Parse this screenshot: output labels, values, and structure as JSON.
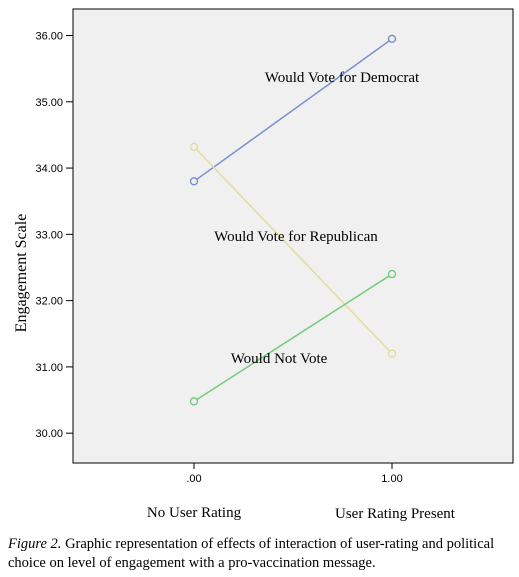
{
  "chart_data": {
    "type": "line",
    "ylabel": "Engagement Scale",
    "x": [
      0,
      1
    ],
    "x_tick_labels": [
      ".00",
      "1.00"
    ],
    "x_category_labels": [
      "No User Rating",
      "User Rating Present"
    ],
    "ylim": [
      29.55,
      36.4
    ],
    "y_ticks": [
      30,
      31,
      32,
      33,
      34,
      35,
      36
    ],
    "y_tick_labels": [
      "30.00",
      "31.00",
      "32.00",
      "33.00",
      "34.00",
      "35.00",
      "36.00"
    ],
    "grid": false,
    "series": [
      {
        "name": "Would Vote for Democrat",
        "values": [
          33.8,
          35.95
        ],
        "color": "#7a8fcf"
      },
      {
        "name": "Would Vote for Republican",
        "values": [
          34.32,
          31.2
        ],
        "color": "#e3dc9e"
      },
      {
        "name": "Would Not Vote",
        "values": [
          30.48,
          32.4
        ],
        "color": "#72cc7a"
      }
    ]
  },
  "caption": {
    "label": "Figure 2.",
    "text": " Graphic representation of effects of interaction of user-rating and political choice on level of engagement with a pro-vaccination message."
  }
}
